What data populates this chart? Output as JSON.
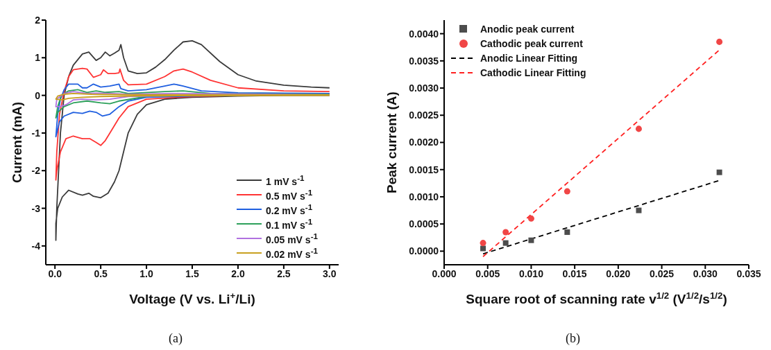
{
  "chart_data": [
    {
      "type": "line",
      "xlabel": "Voltage (V vs. Li$^{+}$/Li)",
      "ylabel": "Current (mA)",
      "annotations": [
        "(a)"
      ],
      "xlim": [
        -0.1,
        3.1
      ],
      "ylim": [
        -4.5,
        2
      ],
      "xticks": [
        {
          "value": 0,
          "label": "0.0"
        },
        {
          "value": 0.5,
          "label": "0.5"
        },
        {
          "value": 1,
          "label": "1.0"
        },
        {
          "value": 1.5,
          "label": "1.5"
        },
        {
          "value": 2,
          "label": "2.0"
        },
        {
          "value": 2.5,
          "label": "2.5"
        },
        {
          "value": 3,
          "label": "3.0"
        }
      ],
      "yticks": [
        -4,
        -3,
        -2,
        -1,
        0,
        1,
        2
      ],
      "legend": "bottom right",
      "marker": "none",
      "line_style": "solid",
      "series": [
        {
          "name": "1 mV s$^{-1}$",
          "color": "#3a3a3a",
          "x": [
            3.0,
            2.5,
            2.0,
            1.5,
            1.2,
            1.0,
            0.9,
            0.8,
            0.75,
            0.7,
            0.65,
            0.58,
            0.5,
            0.42,
            0.37,
            0.3,
            0.25,
            0.15,
            0.08,
            0.03,
            0.01,
            0.01,
            0.02,
            0.04,
            0.06,
            0.1,
            0.15,
            0.2,
            0.3,
            0.37,
            0.45,
            0.5,
            0.55,
            0.6,
            0.65,
            0.7,
            0.72,
            0.75,
            0.8,
            0.9,
            1.0,
            1.1,
            1.2,
            1.3,
            1.4,
            1.5,
            1.6,
            1.8,
            2.0,
            2.2,
            2.5,
            2.8,
            3.0
          ],
          "values": [
            0.0,
            0.0,
            -0.02,
            -0.05,
            -0.1,
            -0.25,
            -0.5,
            -1.0,
            -1.5,
            -2.0,
            -2.3,
            -2.6,
            -2.72,
            -2.68,
            -2.6,
            -2.65,
            -2.62,
            -2.52,
            -2.7,
            -3.0,
            -3.4,
            -3.85,
            -3.0,
            -2.0,
            -1.0,
            0.0,
            0.5,
            0.8,
            1.1,
            1.15,
            0.93,
            1.0,
            1.15,
            1.05,
            1.12,
            1.2,
            1.35,
            1.0,
            0.65,
            0.58,
            0.6,
            0.75,
            0.95,
            1.2,
            1.42,
            1.45,
            1.35,
            0.9,
            0.55,
            0.38,
            0.27,
            0.22,
            0.2
          ]
        },
        {
          "name": "0.5 mV s$^{-1}$",
          "color": "#ff3333",
          "x": [
            3.0,
            2.0,
            1.5,
            1.0,
            0.8,
            0.7,
            0.6,
            0.55,
            0.5,
            0.45,
            0.38,
            0.3,
            0.2,
            0.12,
            0.06,
            0.02,
            0.01,
            0.02,
            0.05,
            0.1,
            0.15,
            0.2,
            0.3,
            0.35,
            0.42,
            0.5,
            0.53,
            0.58,
            0.65,
            0.7,
            0.71,
            0.75,
            0.8,
            1.0,
            1.2,
            1.3,
            1.4,
            1.5,
            1.7,
            2.0,
            2.5,
            3.0
          ],
          "values": [
            0.05,
            0.0,
            -0.03,
            -0.1,
            -0.3,
            -0.6,
            -1.0,
            -1.2,
            -1.33,
            -1.25,
            -1.15,
            -1.15,
            -1.08,
            -1.15,
            -1.5,
            -2.0,
            -2.25,
            -1.5,
            -0.5,
            0.1,
            0.5,
            0.68,
            0.72,
            0.7,
            0.48,
            0.55,
            0.68,
            0.58,
            0.58,
            0.6,
            0.7,
            0.4,
            0.28,
            0.3,
            0.5,
            0.65,
            0.7,
            0.62,
            0.4,
            0.2,
            0.12,
            0.1
          ]
        },
        {
          "name": "0.2 mV s$^{-1}$",
          "color": "#1f5fe0",
          "x": [
            3.0,
            2.0,
            1.5,
            1.0,
            0.8,
            0.7,
            0.6,
            0.52,
            0.45,
            0.38,
            0.3,
            0.2,
            0.1,
            0.05,
            0.01,
            0.03,
            0.06,
            0.1,
            0.15,
            0.25,
            0.3,
            0.35,
            0.42,
            0.5,
            0.6,
            0.7,
            0.72,
            0.8,
            1.0,
            1.2,
            1.3,
            1.4,
            1.6,
            2.0,
            3.0
          ],
          "values": [
            0.03,
            0.0,
            -0.02,
            -0.05,
            -0.15,
            -0.3,
            -0.5,
            -0.55,
            -0.45,
            -0.42,
            -0.48,
            -0.45,
            -0.55,
            -0.7,
            -1.1,
            -0.5,
            -0.1,
            0.15,
            0.3,
            0.3,
            0.2,
            0.2,
            0.3,
            0.22,
            0.25,
            0.3,
            0.18,
            0.12,
            0.15,
            0.25,
            0.3,
            0.25,
            0.12,
            0.07,
            0.05
          ]
        },
        {
          "name": "0.1 mV s$^{-1}$",
          "color": "#2ca05a",
          "x": [
            3.0,
            1.5,
            1.0,
            0.7,
            0.6,
            0.5,
            0.35,
            0.2,
            0.1,
            0.03,
            0.01,
            0.03,
            0.07,
            0.15,
            0.25,
            0.35,
            0.45,
            0.55,
            0.7,
            0.8,
            1.2,
            1.4,
            1.7,
            3.0
          ],
          "values": [
            0.02,
            0.0,
            -0.03,
            -0.15,
            -0.22,
            -0.2,
            -0.15,
            -0.2,
            -0.3,
            -0.45,
            -0.6,
            -0.3,
            0.0,
            0.12,
            0.15,
            0.08,
            0.12,
            0.08,
            0.1,
            0.05,
            0.1,
            0.12,
            0.05,
            0.03
          ]
        },
        {
          "name": "0.05 mV s$^{-1}$",
          "color": "#b070e0",
          "x": [
            3.0,
            1.5,
            0.8,
            0.6,
            0.45,
            0.3,
            0.2,
            0.12,
            0.05,
            0.01,
            0.02,
            0.1,
            0.2,
            0.35,
            0.45,
            0.6,
            0.8,
            1.3,
            3.0
          ],
          "values": [
            0.01,
            0.0,
            -0.03,
            -0.1,
            -0.12,
            -0.1,
            -0.12,
            -0.25,
            -0.3,
            -0.3,
            -0.1,
            0.05,
            0.1,
            0.05,
            0.06,
            0.05,
            0.03,
            0.05,
            0.02
          ]
        },
        {
          "name": "0.02 mV s$^{-1}$",
          "color": "#c8a020",
          "x": [
            3.0,
            1.0,
            0.5,
            0.3,
            0.15,
            0.08,
            0.01,
            0.03,
            0.1,
            0.2,
            0.4,
            0.8,
            3.0
          ],
          "values": [
            0.0,
            -0.01,
            -0.03,
            -0.05,
            -0.08,
            -0.12,
            -0.1,
            -0.02,
            0.03,
            0.05,
            0.03,
            0.02,
            0.01
          ]
        }
      ]
    },
    {
      "type": "scatter",
      "xlabel": "Square root of scanning rate v$^{1/2}$ (V$^{1/2}$/s$^{1/2}$)",
      "ylabel": "Peak current (A)",
      "annotations": [
        "(b)"
      ],
      "xlim": [
        0,
        0.035
      ],
      "ylim": [
        -0.00025,
        0.00425
      ],
      "xticks": [
        {
          "value": 0,
          "label": "0.000"
        },
        {
          "value": 0.005,
          "label": "0.005"
        },
        {
          "value": 0.01,
          "label": "0.010"
        },
        {
          "value": 0.015,
          "label": "0.015"
        },
        {
          "value": 0.02,
          "label": "0.020"
        },
        {
          "value": 0.025,
          "label": "0.025"
        },
        {
          "value": 0.03,
          "label": "0.030"
        },
        {
          "value": 0.035,
          "label": "0.035"
        }
      ],
      "yticks": [
        {
          "value": 0,
          "label": "0.0000"
        },
        {
          "value": 0.0005,
          "label": "0.0005"
        },
        {
          "value": 0.001,
          "label": "0.0010"
        },
        {
          "value": 0.0015,
          "label": "0.0015"
        },
        {
          "value": 0.002,
          "label": "0.0020"
        },
        {
          "value": 0.0025,
          "label": "0.0025"
        },
        {
          "value": 0.003,
          "label": "0.0030"
        },
        {
          "value": 0.0035,
          "label": "0.0035"
        },
        {
          "value": 0.004,
          "label": "0.0040"
        }
      ],
      "legend": "top left",
      "series": [
        {
          "name": "Anodic peak current",
          "type": "scatter",
          "marker": "square",
          "color": "#4d4d4d",
          "x": [
            0.00447,
            0.00707,
            0.01,
            0.01414,
            0.02236,
            0.03162
          ],
          "values": [
            5e-05,
            0.00015,
            0.0002,
            0.00035,
            0.00075,
            0.00145
          ]
        },
        {
          "name": "Cathodic peak current",
          "type": "scatter",
          "marker": "circle",
          "color": "#f04646",
          "x": [
            0.00447,
            0.00707,
            0.01,
            0.01414,
            0.02236,
            0.03162
          ],
          "values": [
            0.00015,
            0.00035,
            0.0006,
            0.0011,
            0.00225,
            0.00385
          ]
        },
        {
          "name": "Anodic Linear Fitting",
          "type": "line",
          "line_style": "dashed",
          "marker": "none",
          "color": "#000000",
          "x": [
            0.00447,
            0.03162
          ],
          "values": [
            -5e-05,
            0.0013
          ]
        },
        {
          "name": "Cathodic Linear Fitting",
          "type": "line",
          "line_style": "dashed",
          "marker": "none",
          "color": "#ff2020",
          "x": [
            0.00447,
            0.03162
          ],
          "values": [
            -0.0001,
            0.0037
          ]
        }
      ]
    }
  ]
}
